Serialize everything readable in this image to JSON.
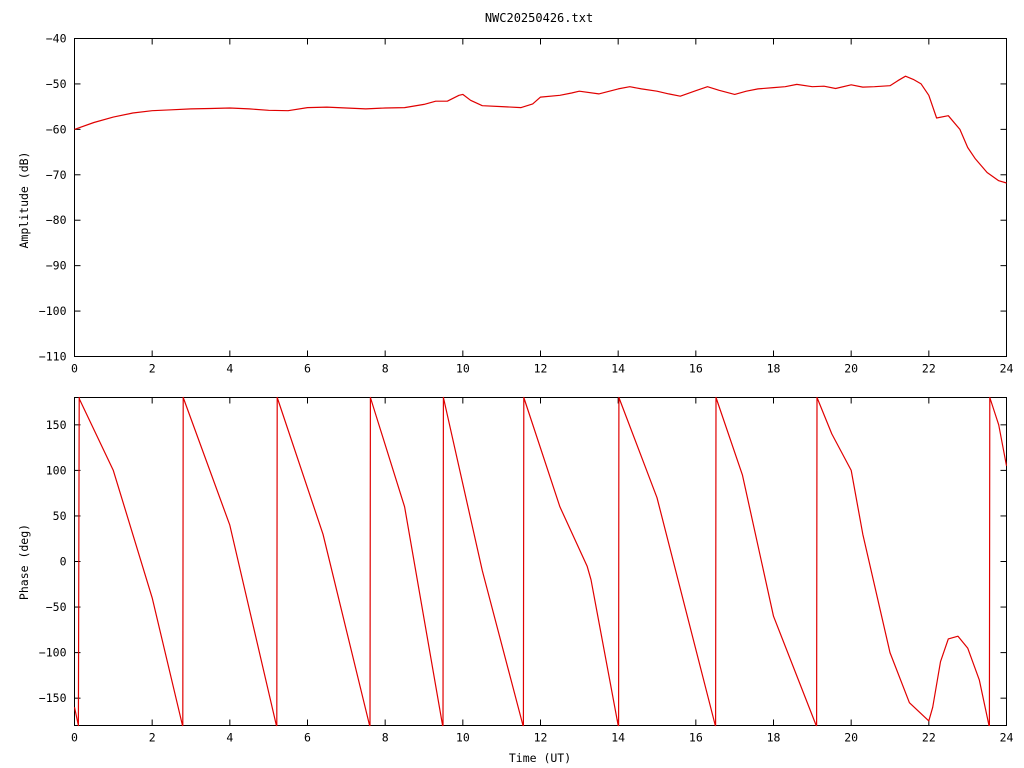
{
  "title": "NWC20250426.txt",
  "series_color": "#e00000",
  "chart_data": [
    {
      "type": "line",
      "panel": "amplitude",
      "title": "NWC20250426.txt",
      "xlabel": "",
      "ylabel": "Amplitude (dB)",
      "xlim": [
        0,
        24
      ],
      "ylim": [
        -110,
        -40
      ],
      "xticks": [
        0,
        2,
        4,
        6,
        8,
        10,
        12,
        14,
        16,
        18,
        20,
        22,
        24
      ],
      "yticks": [
        -40,
        -50,
        -60,
        -70,
        -80,
        -90,
        -100,
        -110
      ],
      "grid": false,
      "series": [
        {
          "x": [
            0,
            0.5,
            1,
            1.5,
            2,
            2.5,
            3,
            3.5,
            4,
            4.5,
            5,
            5.5,
            6,
            6.5,
            7,
            7.5,
            8,
            8.5,
            9,
            9.3,
            9.6,
            9.9,
            10,
            10.2,
            10.5,
            11,
            11.5,
            11.8,
            12,
            12.5,
            12.8,
            13,
            13.5,
            14,
            14.3,
            14.6,
            15,
            15.3,
            15.6,
            16,
            16.3,
            16.6,
            17,
            17.3,
            17.6,
            18,
            18.3,
            18.6,
            19,
            19.3,
            19.6,
            20,
            20.3,
            20.6,
            21,
            21.2,
            21.4,
            21.6,
            21.8,
            22,
            22.2,
            22.5,
            22.8,
            23,
            23.2,
            23.5,
            23.8,
            24
          ],
          "y": [
            -60,
            -58.5,
            -57.3,
            -56.4,
            -55.9,
            -55.7,
            -55.5,
            -55.4,
            -55.3,
            -55.5,
            -55.8,
            -55.9,
            -55.2,
            -55.1,
            -55.3,
            -55.5,
            -55.3,
            -55.2,
            -54.5,
            -53.8,
            -53.8,
            -52.5,
            -52.3,
            -53.6,
            -54.8,
            -55.0,
            -55.2,
            -54.4,
            -52.9,
            -52.5,
            -52.0,
            -51.6,
            -52.2,
            -51.1,
            -50.6,
            -51.1,
            -51.6,
            -52.2,
            -52.7,
            -51.5,
            -50.6,
            -51.4,
            -52.3,
            -51.6,
            -51.1,
            -50.8,
            -50.6,
            -50.1,
            -50.6,
            -50.5,
            -51.0,
            -50.2,
            -50.7,
            -50.6,
            -50.4,
            -49.3,
            -48.3,
            -49.0,
            -50.0,
            -52.5,
            -57.5,
            -57.0,
            -60.0,
            -64.0,
            -66.5,
            -69.5,
            -71.3,
            -71.8
          ]
        }
      ]
    },
    {
      "type": "line",
      "panel": "phase",
      "title": "",
      "xlabel": "Time (UT)",
      "ylabel": "Phase (deg)",
      "xlim": [
        0,
        24
      ],
      "ylim": [
        -180,
        180
      ],
      "xticks": [
        0,
        2,
        4,
        6,
        8,
        10,
        12,
        14,
        16,
        18,
        20,
        22,
        24
      ],
      "yticks": [
        150,
        100,
        50,
        0,
        -50,
        -100,
        -150
      ],
      "grid": false,
      "series": [
        {
          "x": [
            0,
            0.1,
            0.12,
            0.13,
            1,
            2,
            2.78,
            2.79,
            2.8,
            4,
            5.2,
            5.21,
            5.22,
            6.4,
            7.6,
            7.61,
            7.62,
            8.5,
            9.48,
            9.49,
            9.5,
            10.5,
            11.55,
            11.56,
            11.57,
            12.5,
            13.2,
            13.3,
            14,
            14.01,
            14.02,
            15,
            16.5,
            16.51,
            16.52,
            17.2,
            18,
            19.1,
            19.11,
            19.12,
            19.5,
            20,
            20.3,
            21,
            21.5,
            22,
            22.1,
            22.3,
            22.5,
            22.75,
            23,
            23.3,
            23.55,
            23.56,
            23.57,
            23.8,
            24
          ],
          "y": [
            -160,
            -180,
            180,
            178,
            100,
            -40,
            -180,
            -180,
            180,
            40,
            -180,
            -180,
            180,
            30,
            -180,
            -180,
            180,
            60,
            -180,
            -180,
            180,
            -10,
            -180,
            -180,
            180,
            60,
            -5,
            -20,
            -180,
            -180,
            180,
            70,
            -180,
            -180,
            180,
            95,
            -60,
            -180,
            -180,
            180,
            140,
            100,
            30,
            -100,
            -155,
            -175,
            -160,
            -110,
            -85,
            -82,
            -95,
            -130,
            -180,
            -180,
            180,
            150,
            105
          ]
        }
      ]
    }
  ]
}
